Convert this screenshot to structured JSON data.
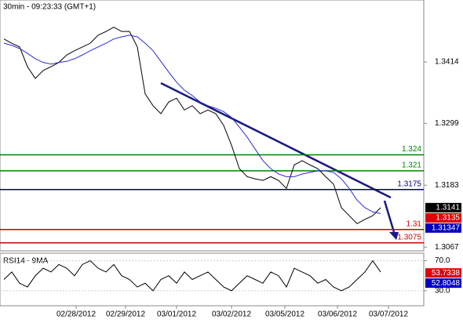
{
  "chart_data": [
    {
      "type": "line",
      "title": "30min - 09:23:33 (GMT+1)",
      "xlim": [
        -0.5,
        53.5
      ],
      "xticks": [
        {
          "value": 9.2,
          "label": "02/28/2012"
        },
        {
          "value": 15.5,
          "label": "02/29/2012"
        },
        {
          "value": 22,
          "label": "03/01/2012"
        },
        {
          "value": 29,
          "label": "03/02/2012"
        },
        {
          "value": 35.8,
          "label": "03/05/2012"
        },
        {
          "value": 42.5,
          "label": "03/06/2012"
        },
        {
          "value": 49,
          "label": "03/07/2012"
        }
      ],
      "ylim": [
        1.306,
        1.353
      ],
      "yticks": [
        1.3414,
        1.3299,
        1.3183,
        1.3067
      ],
      "series": [
        {
          "color": "#000000",
          "values": [
            1.3457,
            1.3449,
            1.3442,
            1.3405,
            1.3383,
            1.3398,
            1.3405,
            1.3413,
            1.3427,
            1.3435,
            1.3442,
            1.3449,
            1.3464,
            1.3471,
            1.3479,
            1.3471,
            1.3471,
            1.3442,
            1.3354,
            1.3332,
            1.3317,
            1.3339,
            1.3346,
            1.3324,
            1.3332,
            1.3317,
            1.3324,
            1.3317,
            1.3295,
            1.3258,
            1.3214,
            1.3199,
            1.3195,
            1.3192,
            1.3199,
            1.3192,
            1.3177,
            1.3221,
            1.3229,
            1.3221,
            1.3214,
            1.3199,
            1.3185,
            1.3141,
            1.3126,
            1.3111,
            1.3119,
            1.3126,
            1.3141
          ]
        },
        {
          "color": "#2b2bd0",
          "values": [
            1.3449,
            1.3445,
            1.3439,
            1.343,
            1.342,
            1.3413,
            1.341,
            1.3413,
            1.3415,
            1.342,
            1.3427,
            1.3435,
            1.3442,
            1.3449,
            1.3457,
            1.3461,
            1.3464,
            1.3461,
            1.3449,
            1.3435,
            1.3415,
            1.3395,
            1.3376,
            1.3361,
            1.3351,
            1.3339,
            1.3332,
            1.3327,
            1.3321,
            1.331,
            1.3292,
            1.3273,
            1.3251,
            1.3229,
            1.3214,
            1.3204,
            1.3199,
            1.3199,
            1.3204,
            1.3207,
            1.321,
            1.321,
            1.3207,
            1.3195,
            1.3177,
            1.3155,
            1.3141,
            1.3133,
            1.313
          ]
        }
      ],
      "levels": [
        {
          "value": 1.324,
          "color": "#008000"
        },
        {
          "value": 1.321,
          "color": "#008000"
        },
        {
          "value": 1.3175,
          "color": "#000080"
        },
        {
          "value": 1.31,
          "color": "#d00000"
        },
        {
          "value": 1.3075,
          "color": "#d00000"
        }
      ],
      "price_boxes": [
        {
          "value": 1.3141,
          "color": "#000000"
        },
        {
          "value": 1.3135,
          "color": "#e00000"
        },
        {
          "value": 1.31347,
          "color": "#0000c0"
        }
      ]
    },
    {
      "type": "line",
      "title": "RSI14 - 9MA",
      "xlim": [
        -0.5,
        53.5
      ],
      "ylim": [
        10,
        80
      ],
      "yticks": [
        {
          "value": 70,
          "label": "70.0"
        },
        {
          "value": 30,
          "label": "30.0"
        }
      ],
      "series": [
        {
          "color": "#000000",
          "values": [
            45,
            55,
            40,
            35,
            50,
            60,
            55,
            65,
            60,
            50,
            65,
            70,
            60,
            55,
            65,
            50,
            45,
            35,
            40,
            30,
            45,
            50,
            40,
            55,
            45,
            50,
            55,
            45,
            35,
            30,
            40,
            50,
            45,
            40,
            55,
            50,
            35,
            60,
            55,
            50,
            40,
            45,
            35,
            30,
            35,
            45,
            55,
            70,
            55
          ]
        }
      ],
      "price_boxes": [
        {
          "value": 53.7338,
          "color": "#e00000"
        },
        {
          "value": 52.8048,
          "color": "#0000c0"
        }
      ]
    }
  ]
}
